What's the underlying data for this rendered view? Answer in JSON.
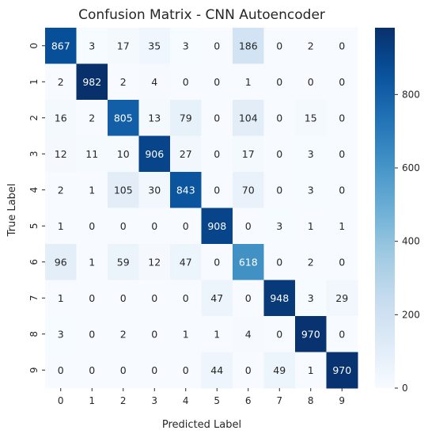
{
  "chart_data": {
    "type": "heatmap",
    "title": "Confusion Matrix - CNN Autoencoder",
    "xlabel": "Predicted Label",
    "ylabel": "True Label",
    "x_categories": [
      "0",
      "1",
      "2",
      "3",
      "4",
      "5",
      "6",
      "7",
      "8",
      "9"
    ],
    "y_categories": [
      "0",
      "1",
      "2",
      "3",
      "4",
      "5",
      "6",
      "7",
      "8",
      "9"
    ],
    "values": [
      [
        867,
        3,
        17,
        35,
        3,
        0,
        186,
        0,
        2,
        0
      ],
      [
        2,
        982,
        2,
        4,
        0,
        0,
        1,
        0,
        0,
        0
      ],
      [
        16,
        2,
        805,
        13,
        79,
        0,
        104,
        0,
        15,
        0
      ],
      [
        12,
        11,
        10,
        906,
        27,
        0,
        17,
        0,
        3,
        0
      ],
      [
        2,
        1,
        105,
        30,
        843,
        0,
        70,
        0,
        3,
        0
      ],
      [
        1,
        0,
        0,
        0,
        0,
        908,
        0,
        3,
        1,
        1
      ],
      [
        96,
        1,
        59,
        12,
        47,
        0,
        618,
        0,
        2,
        0
      ],
      [
        1,
        0,
        0,
        0,
        0,
        47,
        0,
        948,
        3,
        29
      ],
      [
        3,
        0,
        2,
        0,
        1,
        1,
        4,
        0,
        970,
        0
      ],
      [
        0,
        0,
        0,
        0,
        0,
        44,
        0,
        49,
        1,
        970
      ]
    ],
    "colormap": "Blues",
    "color_low": "#f7fbff",
    "color_high": "#08306b",
    "vmin": 0,
    "vmax": 982,
    "colorbar_ticks": [
      0,
      200,
      400,
      600,
      800
    ],
    "legend_placement": "right"
  }
}
